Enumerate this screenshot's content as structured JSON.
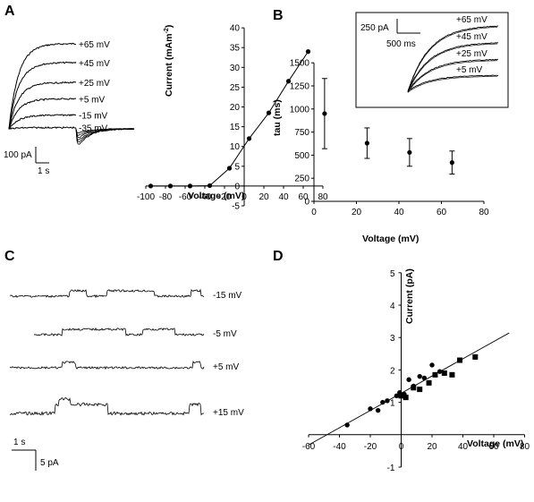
{
  "panels": {
    "A": "A",
    "B": "B",
    "C": "C",
    "D": "D"
  },
  "chart_data": [
    {
      "id": "A-traces",
      "type": "line",
      "series": [
        {
          "name": "+65 mV",
          "plateau": 3.4
        },
        {
          "name": "+45 mV",
          "plateau": 2.65
        },
        {
          "name": "+25 mV",
          "plateau": 1.85
        },
        {
          "name": "+5 mV",
          "plateau": 1.2
        },
        {
          "name": "-15 mV",
          "plateau": 0.55
        },
        {
          "name": "-35 mV",
          "plateau": 0.05
        }
      ],
      "scale_bar": {
        "y": "100 pA",
        "x": "1 s"
      }
    },
    {
      "id": "A-iv",
      "type": "line",
      "xlabel": "Voltage (mV)",
      "ylabel": "Current (mAm",
      "ylabel_sup": "-2",
      "ylabel_end": ")",
      "xlim": [
        -100,
        80
      ],
      "ylim": [
        -5,
        40
      ],
      "xticks": [
        "-100",
        "-80",
        "-60",
        "-40",
        "-20",
        "0",
        "20",
        "40",
        "60",
        "80"
      ],
      "yticks": [
        "-5",
        "0",
        "5",
        "10",
        "15",
        "20",
        "25",
        "30",
        "35",
        "40"
      ],
      "x": [
        -95,
        -75,
        -55,
        -35,
        -15,
        5,
        25,
        45,
        65
      ],
      "y": [
        0,
        0,
        0,
        0.1,
        4.5,
        12,
        18.5,
        26.5,
        34
      ]
    },
    {
      "id": "B-tau",
      "type": "scatter",
      "xlabel": "Voltage (mV)",
      "ylabel": "tau (ms)",
      "xlim": [
        0,
        80
      ],
      "ylim": [
        0,
        1500
      ],
      "xticks": [
        "0",
        "20",
        "40",
        "60",
        "80"
      ],
      "yticks": [
        "0",
        "250",
        "500",
        "750",
        "1000",
        "1250",
        "1500"
      ],
      "x": [
        5,
        25,
        45,
        65
      ],
      "y": [
        950,
        630,
        530,
        420
      ],
      "err": [
        380,
        165,
        150,
        125
      ]
    },
    {
      "id": "B-inset",
      "type": "line",
      "series": [
        {
          "name": "+65 mV"
        },
        {
          "name": "+45 mV"
        },
        {
          "name": "+25 mV"
        },
        {
          "name": "+5 mV"
        }
      ],
      "scale_bar": {
        "y": "250 pA",
        "x": "500 ms"
      }
    },
    {
      "id": "C-channels",
      "type": "line",
      "series": [
        {
          "name": "-15 mV"
        },
        {
          "name": "-5 mV"
        },
        {
          "name": "+5 mV"
        },
        {
          "name": "+15 mV"
        }
      ],
      "scale_bar": {
        "x": "1 s",
        "y": "5 pA"
      }
    },
    {
      "id": "D-iv",
      "type": "scatter",
      "xlabel": "Voltage (mV)",
      "ylabel": "Current (pA)",
      "xlim": [
        -60,
        80
      ],
      "ylim": [
        -1,
        5
      ],
      "xticks": [
        "-60",
        "-40",
        "-20",
        "0",
        "20",
        "40",
        "60",
        "80"
      ],
      "yticks": [
        "-1",
        "1",
        "2",
        "3",
        "4",
        "5"
      ],
      "circles": [
        [
          -35,
          0.3
        ],
        [
          -20,
          0.8
        ],
        [
          -15,
          0.75
        ],
        [
          -12,
          1.0
        ],
        [
          -9,
          1.05
        ],
        [
          -3,
          1.2
        ],
        [
          -1,
          1.3
        ],
        [
          2,
          1.25
        ],
        [
          5,
          1.7
        ],
        [
          8,
          1.5
        ],
        [
          12,
          1.8
        ],
        [
          15,
          1.75
        ],
        [
          20,
          2.15
        ],
        [
          25,
          1.95
        ]
      ],
      "squares": [
        [
          0,
          1.2
        ],
        [
          3,
          1.15
        ],
        [
          8,
          1.45
        ],
        [
          12,
          1.4
        ],
        [
          18,
          1.6
        ],
        [
          22,
          1.85
        ],
        [
          28,
          1.9
        ],
        [
          33,
          1.85
        ],
        [
          38,
          2.3
        ],
        [
          48,
          2.4
        ]
      ],
      "fit": {
        "slope": 0.0266,
        "intercept": 1.28
      }
    }
  ]
}
